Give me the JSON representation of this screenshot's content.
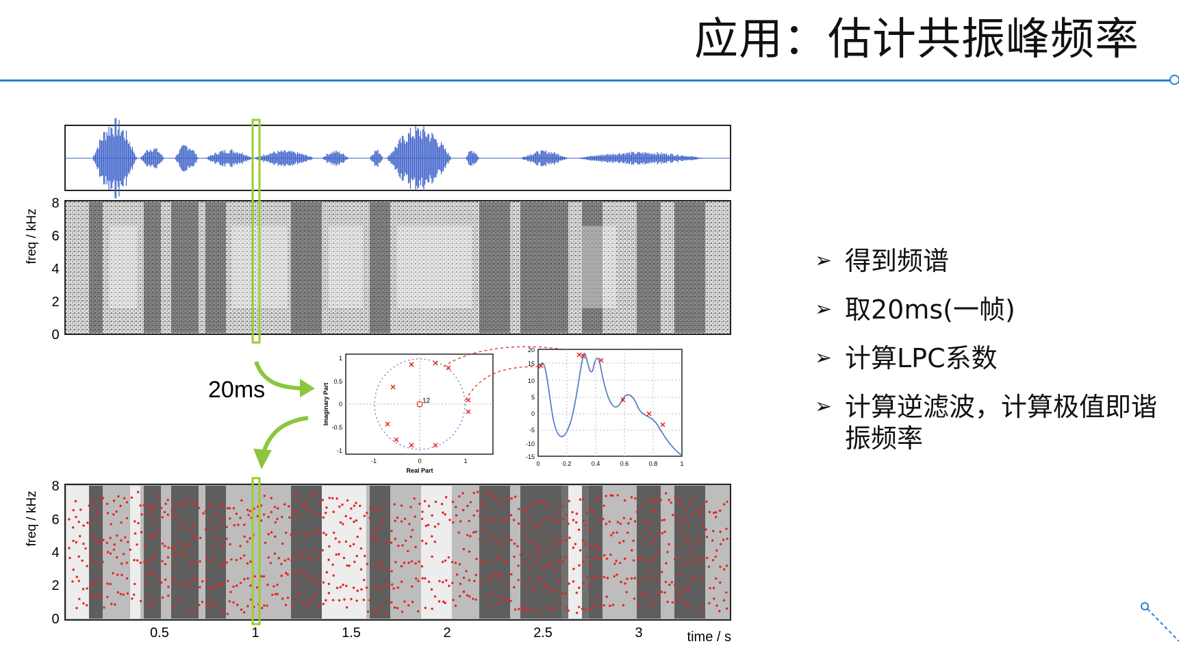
{
  "slide": {
    "title": "应用：估计共振峰频率"
  },
  "figure": {
    "frame_label": "20ms",
    "freq_label": "freq / kHz",
    "freq_ticks": [
      "8",
      "6",
      "4",
      "2",
      "0"
    ],
    "time_label": "time / s",
    "time_ticks": [
      "0.5",
      "1",
      "1.5",
      "2",
      "2.5",
      "3"
    ],
    "pole_plot": {
      "xlabel": "Real Part",
      "ylabel": "Imaginary Part",
      "x_ticks": [
        "-1",
        "0",
        "1"
      ],
      "y_ticks": [
        "1",
        "0.5",
        "0",
        "-0.5",
        "-1"
      ],
      "annotation": "12"
    },
    "spectrum_plot": {
      "x_ticks": [
        "0",
        "0.2",
        "0.4",
        "0.6",
        "0.8",
        "1"
      ],
      "y_ticks": [
        "20",
        "15",
        "10",
        "5",
        "0",
        "-5",
        "-10",
        "-15"
      ]
    }
  },
  "bullets": [
    "得到频谱",
    "取20ms(一帧)",
    "计算LPC系数",
    "计算逆滤波，计算极值即谐振频率"
  ],
  "colors": {
    "accent": "#2f7bd0",
    "waveform": "#3a5fc8",
    "formant": "#e8231e",
    "frame_box": "#9acd32"
  }
}
